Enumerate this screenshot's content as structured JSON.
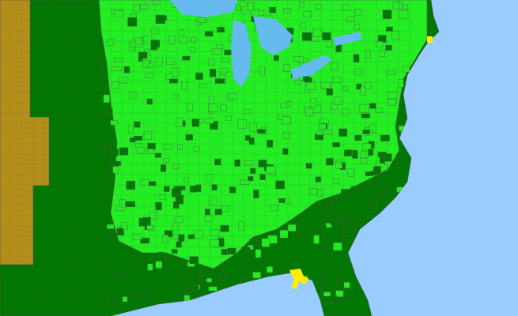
{
  "map": {
    "colors": {
      "ocean": "#99ccff",
      "lakes": "#66bbee",
      "land_base": "#007700",
      "present": "#22ee22",
      "west_states": "#b38f1a",
      "highlight": "#ffee00",
      "borders": "#555555"
    }
  }
}
